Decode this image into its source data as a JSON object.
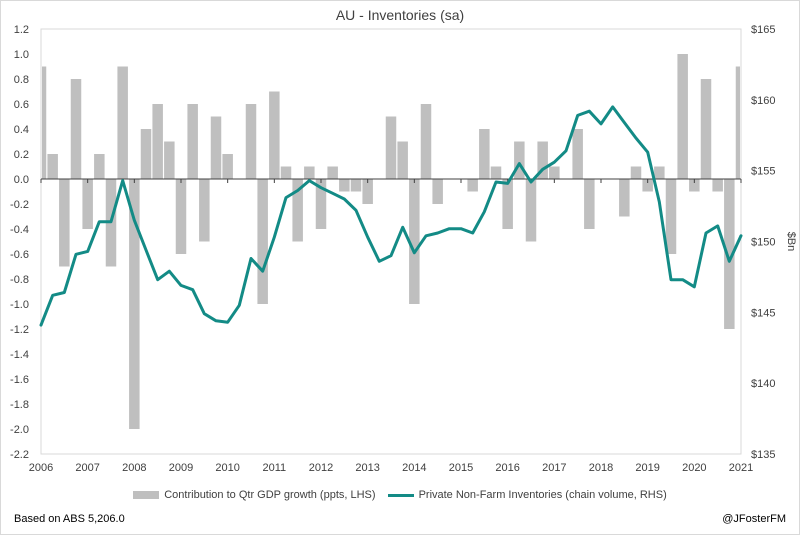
{
  "chart_data": {
    "type": "bar+line",
    "title": "AU - Inventories (sa)",
    "ylabel_right": "$Bn",
    "x_ticks": [
      "2006",
      "2007",
      "2008",
      "2009",
      "2010",
      "2011",
      "2012",
      "2013",
      "2014",
      "2015",
      "2016",
      "2017",
      "2018",
      "2019",
      "2020",
      "2021"
    ],
    "y_left_ticks": [
      "1.2",
      "1.0",
      "0.8",
      "0.6",
      "0.4",
      "0.2",
      "0.0",
      "-0.2",
      "-0.4",
      "-0.6",
      "-0.8",
      "-1.0",
      "-1.2",
      "-1.4",
      "-1.6",
      "-1.8",
      "-2.0",
      "-2.2"
    ],
    "y_right_ticks": [
      "$165",
      "$160",
      "$155",
      "$150",
      "$145",
      "$140",
      "$135"
    ],
    "ylim_left": [
      -2.2,
      1.2
    ],
    "ylim_right": [
      135,
      165
    ],
    "xlim": [
      2006,
      2021
    ],
    "colors": {
      "bars": "#bfbfbf",
      "line": "#138b86",
      "axis": "#404040",
      "grid": "#d9d9d9"
    },
    "series": [
      {
        "name": "Contribution to Qtr GDP growth (ppts, LHS)",
        "kind": "bar",
        "x": [
          2006.0,
          2006.25,
          2006.5,
          2006.75,
          2007.0,
          2007.25,
          2007.5,
          2007.75,
          2008.0,
          2008.25,
          2008.5,
          2008.75,
          2009.0,
          2009.25,
          2009.5,
          2009.75,
          2010.0,
          2010.25,
          2010.5,
          2010.75,
          2011.0,
          2011.25,
          2011.5,
          2011.75,
          2012.0,
          2012.25,
          2012.5,
          2012.75,
          2013.0,
          2013.25,
          2013.5,
          2013.75,
          2014.0,
          2014.25,
          2014.5,
          2014.75,
          2015.0,
          2015.25,
          2015.5,
          2015.75,
          2016.0,
          2016.25,
          2016.5,
          2016.75,
          2017.0,
          2017.25,
          2017.5,
          2017.75,
          2018.0,
          2018.25,
          2018.5,
          2018.75,
          2019.0,
          2019.25,
          2019.5,
          2019.75,
          2020.0,
          2020.25,
          2020.5,
          2020.75,
          2021.0
        ],
        "values": [
          0.9,
          0.2,
          -0.7,
          0.8,
          -0.4,
          0.2,
          -0.7,
          0.9,
          -2.0,
          0.4,
          0.6,
          0.3,
          -0.6,
          0.6,
          -0.5,
          0.5,
          0.2,
          0.0,
          0.6,
          -1.0,
          0.7,
          0.1,
          -0.5,
          0.1,
          -0.4,
          0.1,
          -0.1,
          -0.1,
          -0.2,
          0.0,
          0.5,
          0.3,
          -1.0,
          0.6,
          -0.2,
          0.0,
          0.0,
          -0.1,
          0.4,
          0.1,
          -0.4,
          0.3,
          -0.5,
          0.3,
          0.1,
          0.0,
          0.4,
          -0.4,
          0.0,
          0.0,
          -0.3,
          0.1,
          -0.1,
          0.1,
          -0.6,
          1.0,
          -0.1,
          0.8,
          -0.1,
          -1.2,
          0.9
        ]
      },
      {
        "name": "Private Non-Farm Inventories (chain volume, RHS)",
        "kind": "line",
        "x": [
          2006.0,
          2006.25,
          2006.5,
          2006.75,
          2007.0,
          2007.25,
          2007.5,
          2007.75,
          2008.0,
          2008.25,
          2008.5,
          2008.75,
          2009.0,
          2009.25,
          2009.5,
          2009.75,
          2010.0,
          2010.25,
          2010.5,
          2010.75,
          2011.0,
          2011.25,
          2011.5,
          2011.75,
          2012.0,
          2012.25,
          2012.5,
          2012.75,
          2013.0,
          2013.25,
          2013.5,
          2013.75,
          2014.0,
          2014.25,
          2014.5,
          2014.75,
          2015.0,
          2015.25,
          2015.5,
          2015.75,
          2016.0,
          2016.25,
          2016.5,
          2016.75,
          2017.0,
          2017.25,
          2017.5,
          2017.75,
          2018.0,
          2018.25,
          2018.5,
          2018.75,
          2019.0,
          2019.25,
          2019.5,
          2019.75,
          2020.0,
          2020.25,
          2020.5,
          2020.75,
          2021.0
        ],
        "values": [
          144.1,
          146.2,
          146.4,
          149.1,
          149.3,
          151.4,
          151.4,
          154.3,
          151.5,
          149.4,
          147.3,
          147.9,
          146.9,
          146.6,
          144.9,
          144.4,
          144.3,
          145.5,
          148.8,
          147.9,
          150.3,
          153.1,
          153.6,
          154.3,
          153.8,
          153.4,
          153.0,
          152.2,
          150.3,
          148.6,
          149.0,
          151.0,
          149.2,
          150.4,
          150.6,
          150.9,
          150.9,
          150.6,
          152.1,
          154.2,
          154.1,
          155.5,
          154.2,
          155.1,
          155.6,
          156.4,
          158.9,
          159.2,
          158.3,
          159.5,
          158.4,
          157.3,
          156.3,
          152.8,
          147.3,
          147.3,
          146.8,
          150.6,
          151.1,
          148.6,
          150.4
        ]
      }
    ]
  },
  "footer": {
    "source": "Based on ABS 5,206.0",
    "handle": "@JFosterFM"
  }
}
